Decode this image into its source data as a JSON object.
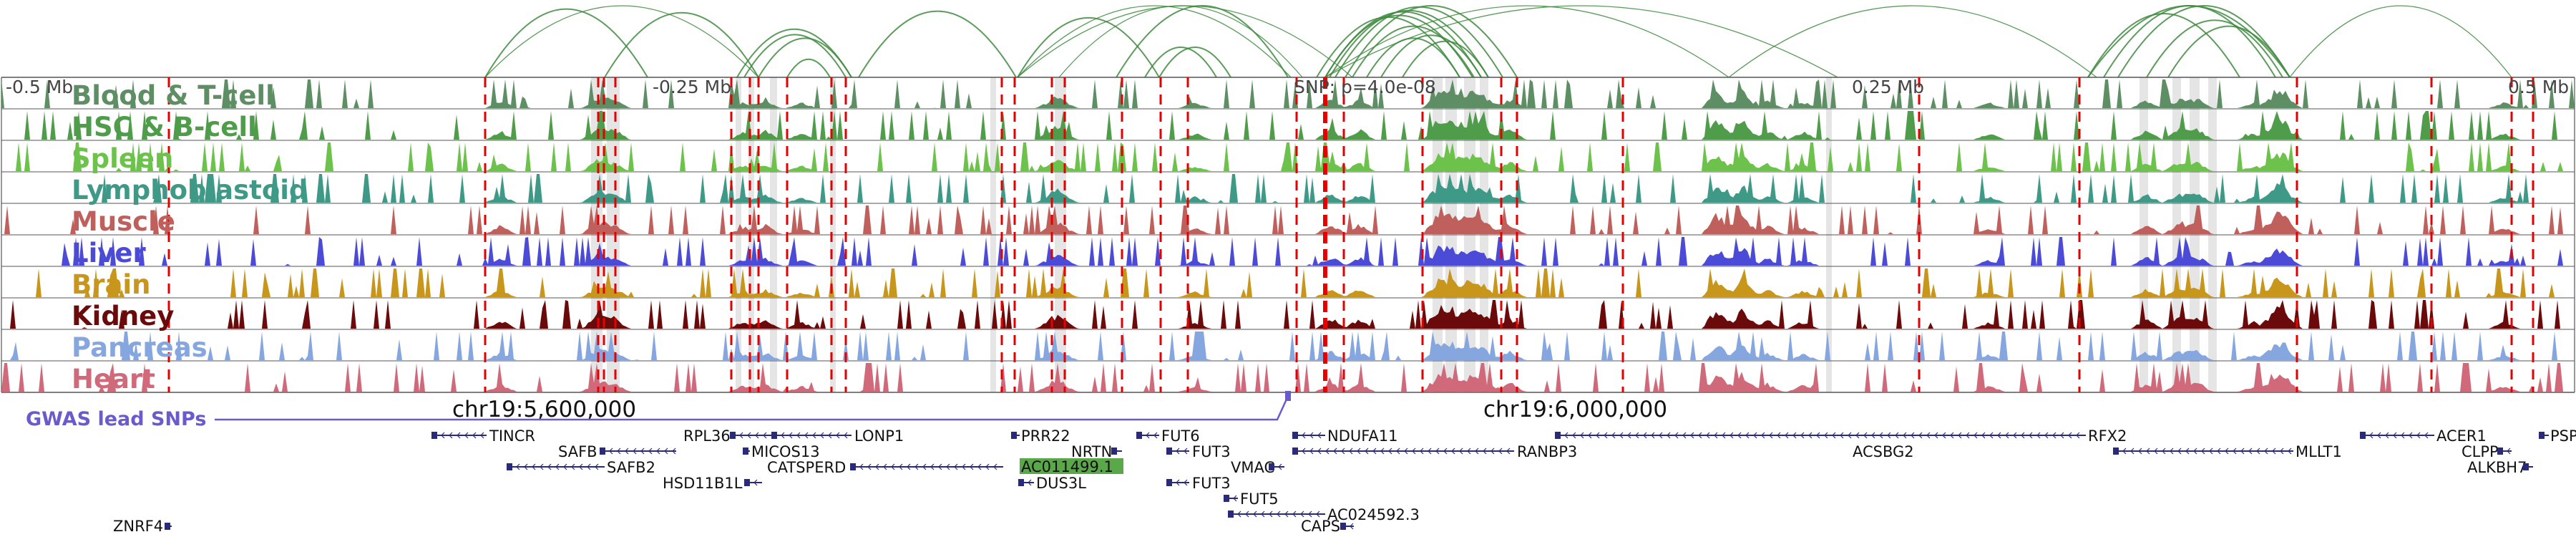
{
  "axis": {
    "left_label": "-0.5 Mb",
    "minus_quarter_label": "-0.25 Mb",
    "snp_label": "SNP: p=4.0e-08",
    "plus_quarter_label": "0.25 Mb",
    "right_label": "0.5 Mb"
  },
  "coords": {
    "left": "chr19:5,600,000",
    "right": "chr19:6,000,000"
  },
  "gwas_label": "GWAS lead SNPs",
  "colors": {
    "gwas": "#6a5acd",
    "arc": "#3f8a3f",
    "snp_line": "#e60000",
    "gene": "#2a2a7a",
    "highlight_gene_bg": "#5aa84a"
  },
  "tracks": [
    {
      "name": "Blood & T-cell",
      "color": "#5e8f64"
    },
    {
      "name": "HSC & B-cell",
      "color": "#4f9d4a"
    },
    {
      "name": "Spleen",
      "color": "#6cc24a"
    },
    {
      "name": "Lymphoblastoid",
      "color": "#3e9a86"
    },
    {
      "name": "Muscle",
      "color": "#c0605c"
    },
    {
      "name": "Liver",
      "color": "#4b4bd8"
    },
    {
      "name": "Brain",
      "color": "#c7961a"
    },
    {
      "name": "Kidney",
      "color": "#6b0a0a"
    },
    {
      "name": "Pancreas",
      "color": "#86a6e0"
    },
    {
      "name": "Heart",
      "color": "#d06a7a"
    }
  ],
  "genes": [
    {
      "name": "TINCR",
      "row": 0,
      "dir": "-"
    },
    {
      "name": "RPL36",
      "row": 0,
      "dir": "-"
    },
    {
      "name": "LONP1",
      "row": 0,
      "dir": "-"
    },
    {
      "name": "PRR22",
      "row": 0,
      "dir": "+"
    },
    {
      "name": "FUT6",
      "row": 0,
      "dir": "-"
    },
    {
      "name": "NDUFA11",
      "row": 0,
      "dir": "-"
    },
    {
      "name": "RFX2",
      "row": 0,
      "dir": "-"
    },
    {
      "name": "ACER1",
      "row": 0,
      "dir": "-"
    },
    {
      "name": "PSPN",
      "row": 0,
      "dir": "+"
    },
    {
      "name": "SAFB",
      "row": 1,
      "dir": "+"
    },
    {
      "name": "MICOS13",
      "row": 1,
      "dir": "+"
    },
    {
      "name": "NRTN",
      "row": 1,
      "dir": "+"
    },
    {
      "name": "FUT3",
      "row": 1,
      "dir": "-"
    },
    {
      "name": "RANBP3",
      "row": 1,
      "dir": "-"
    },
    {
      "name": "ACSBG2",
      "row": 1,
      "dir": "+"
    },
    {
      "name": "MLLT1",
      "row": 1,
      "dir": "-"
    },
    {
      "name": "CLPP",
      "row": 1,
      "dir": "+"
    },
    {
      "name": "SAFB2",
      "row": 2,
      "dir": "-"
    },
    {
      "name": "CATSPERD",
      "row": 2,
      "dir": "+"
    },
    {
      "name": "AC011499.1",
      "row": 2,
      "dir": "+"
    },
    {
      "name": "VMAC",
      "row": 2,
      "dir": "+"
    },
    {
      "name": "ALKBH7",
      "row": 2,
      "dir": "-"
    },
    {
      "name": "HSD11B1L",
      "row": 3,
      "dir": "-"
    },
    {
      "name": "DUS3L",
      "row": 3,
      "dir": "-"
    },
    {
      "name": "FUT3",
      "row": 3,
      "dir": "-"
    },
    {
      "name": "FUT5",
      "row": 4,
      "dir": "-"
    },
    {
      "name": "AC024592.3",
      "row": 5,
      "dir": "-"
    },
    {
      "name": "CAPS",
      "row": 6,
      "dir": "+"
    },
    {
      "name": "ZNRF4",
      "row": 6,
      "dir": "+"
    }
  ]
}
